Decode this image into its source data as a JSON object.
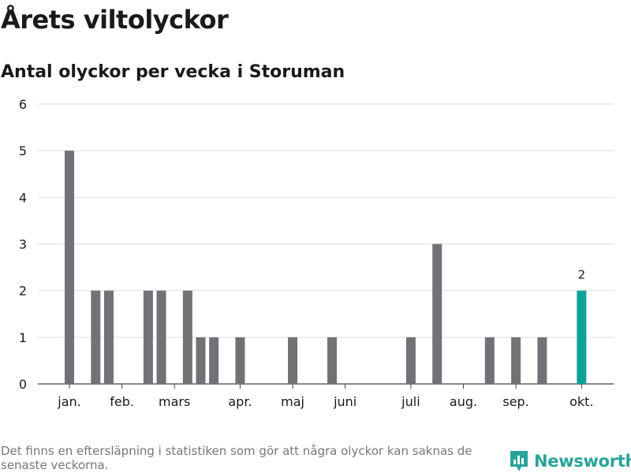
{
  "header": {
    "title": "Årets viltolyckor",
    "subtitle": "Antal olyckor per vecka i Storuman"
  },
  "footer": {
    "note": "Det finns en eftersläpning i statistiken som gör att några olyckor kan saknas de senaste veckorna.",
    "brand": "Newsworthy",
    "brand_icon": "bar-chart-speech-bubble-icon"
  },
  "colors": {
    "bar": "#727176",
    "highlight": "#0ca299",
    "grid": "#dddddd",
    "brand": "#2aa39a"
  },
  "chart_data": {
    "type": "bar",
    "title": "Antal olyckor per vecka i Storuman",
    "xlabel": "",
    "ylabel": "",
    "ylim": [
      0,
      6
    ],
    "yticks": [
      0,
      1,
      2,
      3,
      4,
      5,
      6
    ],
    "grid": true,
    "weeks": [
      1,
      2,
      3,
      4,
      5,
      6,
      7,
      8,
      9,
      10,
      11,
      12,
      13,
      14,
      15,
      16,
      17,
      18,
      19,
      20,
      21,
      22,
      23,
      24,
      25,
      26,
      27,
      28,
      29,
      30,
      31,
      32,
      33,
      34,
      35,
      36,
      37,
      38,
      39,
      40
    ],
    "values": [
      5,
      0,
      2,
      2,
      0,
      0,
      2,
      2,
      0,
      2,
      1,
      1,
      0,
      1,
      0,
      0,
      0,
      1,
      0,
      0,
      1,
      0,
      0,
      0,
      0,
      0,
      1,
      0,
      3,
      0,
      0,
      0,
      1,
      0,
      1,
      0,
      1,
      0,
      0,
      2
    ],
    "highlight_week": 40,
    "highlight_label": "2",
    "month_ticks": [
      {
        "label": "jan.",
        "week": 1
      },
      {
        "label": "feb.",
        "week": 5
      },
      {
        "label": "mars",
        "week": 9
      },
      {
        "label": "apr.",
        "week": 14
      },
      {
        "label": "maj",
        "week": 18
      },
      {
        "label": "juni",
        "week": 22
      },
      {
        "label": "juli",
        "week": 27
      },
      {
        "label": "aug.",
        "week": 31
      },
      {
        "label": "sep.",
        "week": 35
      },
      {
        "label": "okt.",
        "week": 40
      }
    ]
  }
}
